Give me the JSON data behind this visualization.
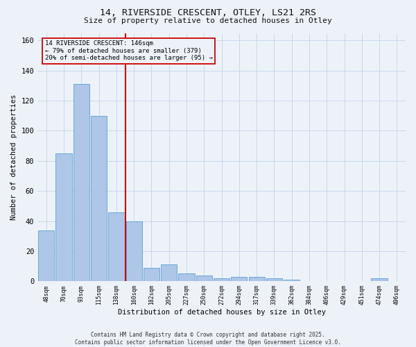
{
  "title1": "14, RIVERSIDE CRESCENT, OTLEY, LS21 2RS",
  "title2": "Size of property relative to detached houses in Otley",
  "xlabel": "Distribution of detached houses by size in Otley",
  "ylabel": "Number of detached properties",
  "footer": "Contains HM Land Registry data © Crown copyright and database right 2025.\nContains public sector information licensed under the Open Government Licence v3.0.",
  "bins": [
    "48sqm",
    "70sqm",
    "93sqm",
    "115sqm",
    "138sqm",
    "160sqm",
    "182sqm",
    "205sqm",
    "227sqm",
    "250sqm",
    "272sqm",
    "294sqm",
    "317sqm",
    "339sqm",
    "362sqm",
    "384sqm",
    "406sqm",
    "429sqm",
    "451sqm",
    "474sqm",
    "496sqm"
  ],
  "values": [
    34,
    85,
    131,
    110,
    46,
    40,
    9,
    11,
    5,
    4,
    2,
    3,
    3,
    2,
    1,
    0,
    0,
    0,
    0,
    2,
    0
  ],
  "bar_color": "#aec6e8",
  "bar_edge_color": "#5a9fd4",
  "vline_x": 4.5,
  "annotation_text": "14 RIVERSIDE CRESCENT: 146sqm\n← 79% of detached houses are smaller (379)\n20% of semi-detached houses are larger (95) →",
  "annotation_box_color": "#cc0000",
  "vline_color": "#cc0000",
  "bg_color": "#edf2f9",
  "grid_color": "#c8d8ec",
  "ylim": [
    0,
    165
  ],
  "yticks": [
    0,
    20,
    40,
    60,
    80,
    100,
    120,
    140,
    160
  ]
}
